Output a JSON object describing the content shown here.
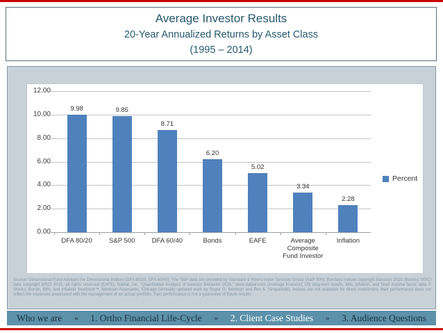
{
  "slide": {
    "title": "Average Investor Results",
    "subtitle": "20-Year Annualized Returns by Asset Class",
    "date_range": "(1995 – 2014)"
  },
  "chart_data": {
    "type": "bar",
    "title": "Average Investor Results — 20-Year Annualized Returns by Asset Class (1995 – 2014)",
    "categories": [
      "DFA 80/20",
      "S&P 500",
      "DFA 60/40",
      "Bonds",
      "EAFE",
      "Average Composite Fund Investor",
      "Inflation"
    ],
    "values": [
      9.98,
      9.85,
      8.71,
      6.2,
      5.02,
      3.34,
      2.28
    ],
    "value_labels": [
      "9.98",
      "9.85",
      "8.71",
      "6.20",
      "5.02",
      "3.34",
      "2.28"
    ],
    "series_name": "Percent",
    "xlabel": "",
    "ylabel": "",
    "ylim": [
      0,
      12
    ],
    "ytick_step": 2,
    "ytick_labels": [
      "0.00",
      "2.00",
      "4.00",
      "6.00",
      "8.00",
      "10.00",
      "12.00"
    ],
    "grid": true,
    "legend_position": "right"
  },
  "source_note": "Source: Dimensional Fund Advisors for Dimensional Indices (DFA 80/20, DFA 60/40). The S&P data are provided by Standard & Poor's Index Services Group (S&P 500); Barclays indices copyright Barclays 2015 (Bonds); MSCI data copyright MSCI 2015, all rights reserved (EAFE); Dalbar, Inc. \"Quantitative Analysis of Investor Behavior 2015,\" www.dalbar.com (Average Investor); US long-term bonds, bills, inflation, and fixed income factor data © Stocks, Bonds, Bills, and Inflation Yearbook™, Ibbotson Associates, Chicago (annually updated work by Roger G. Ibbotson and Rex A. Sinquefield). Indices are not available for direct investment; their performance does not reflect the expenses associated with the management of an actual portfolio. Past performance is not a guarantee of future results.",
  "footer": {
    "separator": "»",
    "items": [
      {
        "label": "Who we are",
        "active": false
      },
      {
        "label": "1. Ortho Financial Life-Cycle",
        "active": false
      },
      {
        "label": "2. Client Case Studies",
        "active": true
      },
      {
        "label": "3. Audience Questions",
        "active": false
      }
    ]
  },
  "colors": {
    "bar": "#4f81bd",
    "title_text": "#26596f",
    "panel_bg": "#c9d1d8",
    "footer_bg": "#5d91aa",
    "footer_text": "#1b3140",
    "footer_active_text": "#ffffff",
    "accent_red": "#cc0000"
  }
}
